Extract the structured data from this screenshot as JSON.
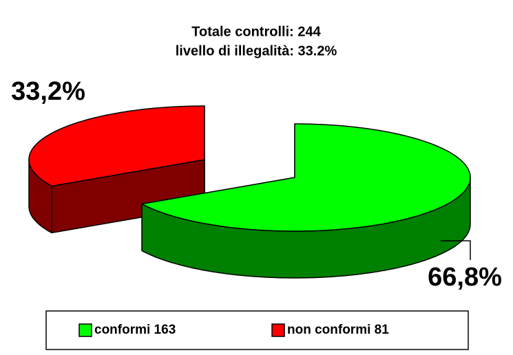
{
  "chart_data": {
    "type": "pie",
    "title": [
      "Totale controlli: 244",
      "livello di illegalità: 33.2%"
    ],
    "categories": [
      "conformi 163",
      "non conformi 81"
    ],
    "values": [
      66.8,
      33.2
    ],
    "value_labels": [
      "66,8%",
      "33,2%"
    ],
    "colors": [
      "#00ff00",
      "#ff0000"
    ],
    "side_colors": [
      "#008000",
      "#800000"
    ]
  }
}
